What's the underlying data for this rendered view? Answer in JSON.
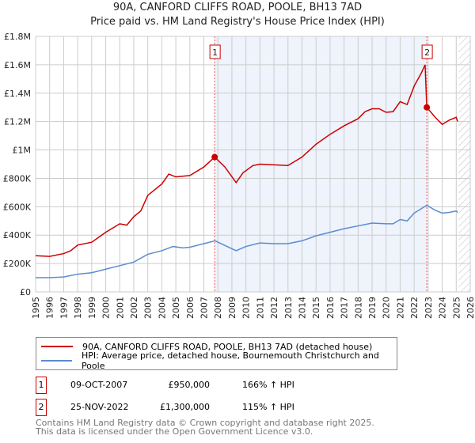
{
  "title": "90A, CANFORD CLIFFS ROAD, POOLE, BH13 7AD",
  "subtitle": "Price paid vs. HM Land Registry's House Price Index (HPI)",
  "chart_data": {
    "type": "line",
    "xlim": [
      1995,
      2026
    ],
    "ylim": [
      0,
      1800000
    ],
    "x_ticks": [
      "1995",
      "1996",
      "1997",
      "1998",
      "1999",
      "2000",
      "2001",
      "2002",
      "2003",
      "2004",
      "2005",
      "2006",
      "2007",
      "2008",
      "2009",
      "2010",
      "2011",
      "2012",
      "2013",
      "2014",
      "2015",
      "2016",
      "2017",
      "2018",
      "2019",
      "2020",
      "2021",
      "2022",
      "2023",
      "2024",
      "2025",
      "2026"
    ],
    "y_ticks": [
      {
        "v": 0,
        "label": "£0"
      },
      {
        "v": 200000,
        "label": "£200K"
      },
      {
        "v": 400000,
        "label": "£400K"
      },
      {
        "v": 600000,
        "label": "£600K"
      },
      {
        "v": 800000,
        "label": "£800K"
      },
      {
        "v": 1000000,
        "label": "£1M"
      },
      {
        "v": 1200000,
        "label": "£1.2M"
      },
      {
        "v": 1400000,
        "label": "£1.4M"
      },
      {
        "v": 1600000,
        "label": "£1.6M"
      },
      {
        "v": 1800000,
        "label": "£1.8M"
      }
    ],
    "grid": true,
    "shaded_range": [
      2007.77,
      2022.9
    ],
    "forecast_from": 2025.17,
    "series": [
      {
        "name": "90A, CANFORD CLIFFS ROAD, POOLE, BH13 7AD (detached house)",
        "color": "#cc0000",
        "points": [
          [
            1995,
            255000
          ],
          [
            1996,
            250000
          ],
          [
            1997,
            270000
          ],
          [
            1997.5,
            290000
          ],
          [
            1998,
            330000
          ],
          [
            1999,
            350000
          ],
          [
            2000,
            420000
          ],
          [
            2001,
            480000
          ],
          [
            2001.5,
            470000
          ],
          [
            2002,
            530000
          ],
          [
            2002.5,
            570000
          ],
          [
            2003,
            680000
          ],
          [
            2004,
            760000
          ],
          [
            2004.5,
            830000
          ],
          [
            2005,
            810000
          ],
          [
            2006,
            820000
          ],
          [
            2007,
            880000
          ],
          [
            2007.77,
            950000
          ],
          [
            2008.5,
            880000
          ],
          [
            2009.3,
            770000
          ],
          [
            2009.8,
            840000
          ],
          [
            2010.5,
            890000
          ],
          [
            2011,
            900000
          ],
          [
            2012,
            895000
          ],
          [
            2013,
            890000
          ],
          [
            2013.5,
            920000
          ],
          [
            2014,
            950000
          ],
          [
            2015,
            1040000
          ],
          [
            2016,
            1110000
          ],
          [
            2017,
            1170000
          ],
          [
            2018,
            1220000
          ],
          [
            2018.5,
            1270000
          ],
          [
            2019,
            1290000
          ],
          [
            2019.5,
            1290000
          ],
          [
            2020,
            1265000
          ],
          [
            2020.5,
            1270000
          ],
          [
            2021,
            1340000
          ],
          [
            2021.5,
            1320000
          ],
          [
            2022,
            1450000
          ],
          [
            2022.5,
            1540000
          ],
          [
            2022.78,
            1600000
          ],
          [
            2022.9,
            1300000
          ],
          [
            2023.5,
            1230000
          ],
          [
            2024,
            1180000
          ],
          [
            2024.5,
            1210000
          ],
          [
            2025,
            1230000
          ],
          [
            2025.1,
            1200000
          ]
        ]
      },
      {
        "name": "HPI: Average price, detached house, Bournemouth Christchurch and Poole",
        "color": "#5b8bd0",
        "points": [
          [
            1995,
            100000
          ],
          [
            1996,
            100000
          ],
          [
            1997,
            105000
          ],
          [
            1998,
            125000
          ],
          [
            1999,
            135000
          ],
          [
            2000,
            160000
          ],
          [
            2001,
            185000
          ],
          [
            2002,
            210000
          ],
          [
            2003,
            265000
          ],
          [
            2004,
            290000
          ],
          [
            2004.8,
            320000
          ],
          [
            2005.5,
            310000
          ],
          [
            2006,
            315000
          ],
          [
            2007,
            340000
          ],
          [
            2007.8,
            360000
          ],
          [
            2009.3,
            290000
          ],
          [
            2010,
            320000
          ],
          [
            2011,
            345000
          ],
          [
            2012,
            340000
          ],
          [
            2013,
            340000
          ],
          [
            2014,
            360000
          ],
          [
            2015,
            395000
          ],
          [
            2016,
            420000
          ],
          [
            2017,
            445000
          ],
          [
            2018,
            465000
          ],
          [
            2019,
            485000
          ],
          [
            2020,
            480000
          ],
          [
            2020.5,
            480000
          ],
          [
            2021,
            510000
          ],
          [
            2021.5,
            500000
          ],
          [
            2022,
            555000
          ],
          [
            2022.9,
            610000
          ],
          [
            2023.5,
            575000
          ],
          [
            2024,
            555000
          ],
          [
            2024.5,
            560000
          ],
          [
            2025,
            570000
          ],
          [
            2025.1,
            560000
          ]
        ]
      }
    ],
    "markers": [
      {
        "label": "1",
        "x": 2007.77,
        "y": 950000
      },
      {
        "label": "2",
        "x": 2022.9,
        "y": 1300000
      }
    ]
  },
  "sales": [
    {
      "num": "1",
      "date": "09-OCT-2007",
      "price": "£950,000",
      "hpi": "166% ↑ HPI"
    },
    {
      "num": "2",
      "date": "25-NOV-2022",
      "price": "£1,300,000",
      "hpi": "115% ↑ HPI"
    }
  ],
  "footer": {
    "line1": "Contains HM Land Registry data © Crown copyright and database right 2025.",
    "line2": "This data is licensed under the Open Government Licence v3.0."
  }
}
